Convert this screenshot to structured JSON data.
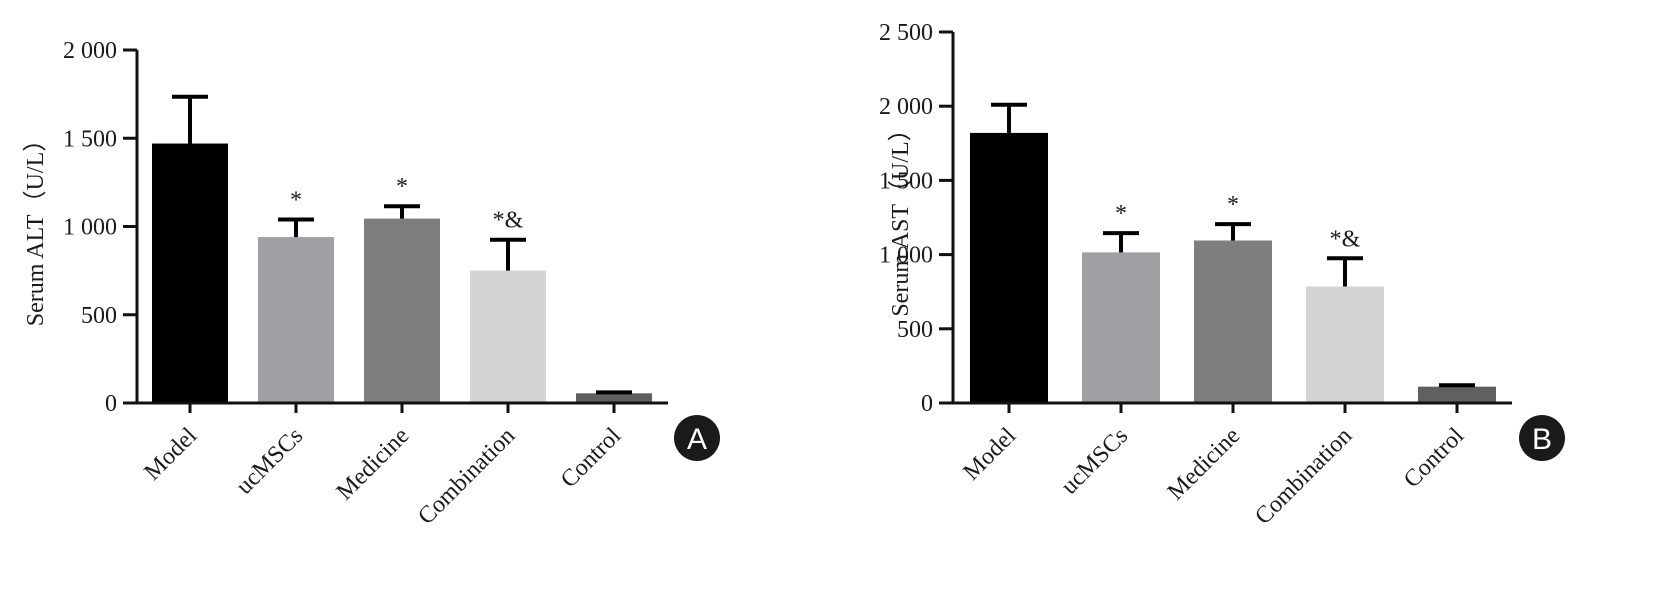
{
  "chart_data": [
    {
      "panel": "A",
      "type": "bar",
      "title": "",
      "xlabel": "",
      "ylabel": "Serum ALT（U/L）",
      "ylim": [
        0,
        2000
      ],
      "yticks": [
        0,
        500,
        1000,
        1500,
        2000
      ],
      "ytick_labels": [
        "0",
        "500",
        "1 000",
        "1 500",
        "2 000"
      ],
      "categories": [
        "Model",
        "ucMSCs",
        "Medicine",
        "Combination",
        "Control"
      ],
      "values": [
        1470,
        940,
        1045,
        750,
        55
      ],
      "errors": [
        265,
        100,
        70,
        175,
        5
      ],
      "annotations": [
        "",
        "*",
        "*",
        "*&",
        ""
      ],
      "colors": [
        "#000000",
        "#a0a0a4",
        "#7e7e7e",
        "#d3d3d3",
        "#606060"
      ]
    },
    {
      "panel": "B",
      "type": "bar",
      "title": "",
      "xlabel": "",
      "ylabel": "Serum AST（U/L）",
      "ylim": [
        0,
        2500
      ],
      "yticks": [
        0,
        500,
        1000,
        1500,
        2000,
        2500
      ],
      "ytick_labels": [
        "0",
        "500",
        "1 000",
        "1 500",
        "2 000",
        "2 500"
      ],
      "categories": [
        "Model",
        "ucMSCs",
        "Medicine",
        "Combination",
        "Control"
      ],
      "values": [
        1820,
        1015,
        1095,
        785,
        110
      ],
      "errors": [
        190,
        130,
        110,
        190,
        10
      ],
      "annotations": [
        "",
        "*",
        "*",
        "*&",
        ""
      ],
      "colors": [
        "#000000",
        "#a0a0a4",
        "#7e7e7e",
        "#d3d3d3",
        "#606060"
      ]
    }
  ]
}
